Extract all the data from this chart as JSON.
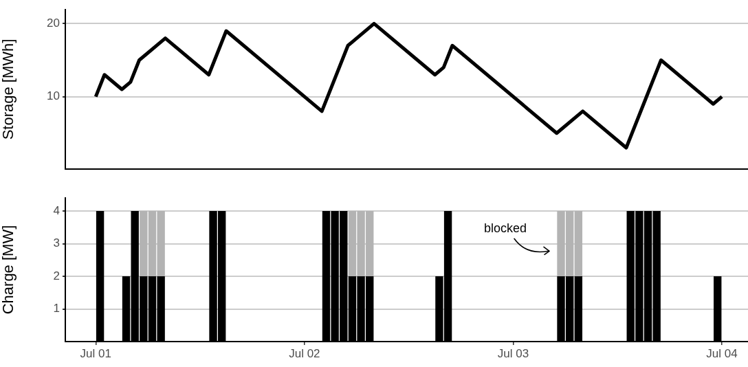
{
  "chart_data": [
    {
      "type": "line",
      "ylabel": "Storage [MWh]",
      "x": [
        "--07-01T00:00",
        "--07-01T01:00",
        "--07-01T03:00",
        "--07-01T04:00",
        "--07-01T05:00",
        "--07-01T08:00",
        "--07-01T13:00",
        "--07-01T15:00",
        "--07-02T02:00",
        "--07-02T05:00",
        "--07-02T08:00",
        "--07-02T15:00",
        "--07-02T16:00",
        "--07-02T17:00",
        "--07-03T05:00",
        "--07-03T08:00",
        "--07-03T13:00",
        "--07-03T17:00",
        "--07-03T23:00",
        "--07-04T00:00"
      ],
      "series": [
        {
          "color": "#000000",
          "values": [
            10,
            13,
            11,
            12,
            15,
            18,
            13,
            19,
            8,
            17,
            20,
            13,
            14,
            17,
            5,
            8,
            3,
            15,
            9,
            10
          ]
        }
      ],
      "xlim": [
        "--06-30T20:30",
        "--07-04T03:00"
      ],
      "ylim": [
        0.1,
        21.9
      ],
      "xticks": [
        {
          "value": "--07-01",
          "label": null
        },
        {
          "value": "--07-02",
          "label": null
        },
        {
          "value": "--07-03",
          "label": null
        },
        {
          "value": "--07-04",
          "label": null
        }
      ],
      "yticks": [
        10,
        20
      ],
      "grid": "y",
      "tick_labels": "y"
    },
    {
      "type": "bar",
      "ylabel": "Charge [MW]",
      "stacked": true,
      "x": [
        "--07-01T00:30",
        "--07-01T03:30",
        "--07-01T04:30",
        "--07-01T05:30",
        "--07-01T06:30",
        "--07-01T07:30",
        "--07-01T13:30",
        "--07-01T14:30",
        "--07-02T02:30",
        "--07-02T03:30",
        "--07-02T04:30",
        "--07-02T05:30",
        "--07-02T06:30",
        "--07-02T07:30",
        "--07-02T15:30",
        "--07-02T16:30",
        "--07-03T05:30",
        "--07-03T06:30",
        "--07-03T07:30",
        "--07-03T13:30",
        "--07-03T14:30",
        "--07-03T15:30",
        "--07-03T16:30",
        "--07-03T23:30"
      ],
      "series": [
        {
          "color": "#000000",
          "values": [
            4,
            2,
            4,
            2,
            2,
            2,
            4,
            4,
            4,
            4,
            4,
            2,
            2,
            2,
            2,
            4,
            2,
            2,
            2,
            4,
            4,
            4,
            4,
            2
          ]
        },
        {
          "color": "#b3b3b3",
          "values": [
            null,
            null,
            null,
            2,
            2,
            2,
            null,
            null,
            null,
            null,
            null,
            2,
            2,
            2,
            null,
            null,
            2,
            2,
            2,
            null,
            null,
            null,
            null,
            null
          ]
        }
      ],
      "xlim": [
        "--06-30T20:30",
        "--07-04T03:00"
      ],
      "ylim": [
        0,
        4.4
      ],
      "xticks": [
        {
          "value": "--07-01",
          "label": "Jul 01"
        },
        {
          "value": "--07-02",
          "label": "Jul 02"
        },
        {
          "value": "--07-03",
          "label": "Jul 03"
        },
        {
          "value": "--07-04",
          "label": "Jul 04"
        }
      ],
      "yticks": [
        1,
        2,
        3,
        4
      ],
      "grid": "y",
      "annotations": [
        "blocked"
      ]
    }
  ]
}
